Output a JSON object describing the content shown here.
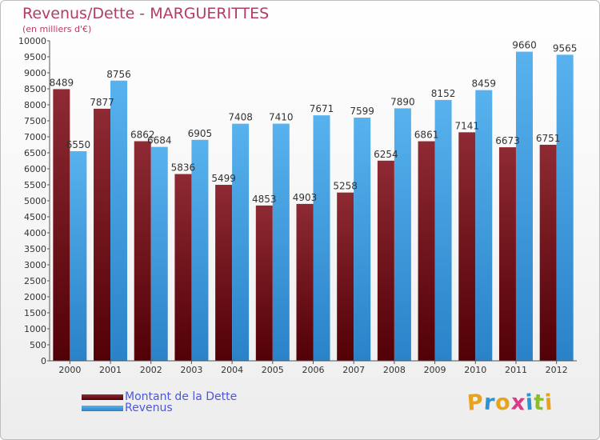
{
  "title": "Revenus/Dette - MARGUERITTES",
  "subtitle": "(en milliers d'€)",
  "logo": {
    "text": "Proxiti",
    "letters": [
      "P",
      "r",
      "o",
      "x",
      "i",
      "t",
      "i"
    ],
    "letter_colors": [
      "#e8a21c",
      "#2a94d6",
      "#e8a21c",
      "#d93a8a",
      "#2a94d6",
      "#8bbd2a",
      "#e8a21c"
    ]
  },
  "colors": {
    "title": "#b43c64",
    "debt": "#7a1d24",
    "revenue": "#3f9ee0",
    "legend_text": "#4a56e0"
  },
  "chart_data": {
    "type": "bar",
    "title": "Revenus/Dette - MARGUERITTES",
    "subtitle": "(en milliers d'€)",
    "xlabel": "",
    "ylabel": "",
    "ylim": [
      0,
      10000
    ],
    "y_ticks": [
      "0",
      "500",
      "1000",
      "1500",
      "2000",
      "2500",
      "3000",
      "3500",
      "4000",
      "4500",
      "5000",
      "5500",
      "6000",
      "6500",
      "7000",
      "7500",
      "8000",
      "8500",
      "9000",
      "9500",
      "10000"
    ],
    "categories": [
      "2000",
      "2001",
      "2002",
      "2003",
      "2004",
      "2005",
      "2006",
      "2007",
      "2008",
      "2009",
      "2010",
      "2011",
      "2012"
    ],
    "series": [
      {
        "name": "Montant de la Dette",
        "color": "#7a1d24",
        "values": [
          8489,
          7877,
          6862,
          5836,
          5499,
          4853,
          4903,
          5258,
          6254,
          6861,
          7141,
          6673,
          6751
        ],
        "labels": [
          "8489",
          "7877",
          "6862",
          "5836",
          "5499",
          "4853",
          "4903",
          "5258",
          "6254",
          "6861",
          "7141",
          "6673",
          "6751"
        ]
      },
      {
        "name": "Revenus",
        "color": "#3f9ee0",
        "values": [
          6550,
          8756,
          6684,
          6905,
          7408,
          7410,
          7671,
          7599,
          7890,
          8152,
          8459,
          9660,
          9565
        ],
        "labels": [
          "6550",
          "8756",
          "6684",
          "6905",
          "7408",
          "7410",
          "7671",
          "7599",
          "7890",
          "8152",
          "8459",
          "9660",
          "9565"
        ]
      }
    ],
    "legend_position": "bottom-left",
    "grid": false
  }
}
